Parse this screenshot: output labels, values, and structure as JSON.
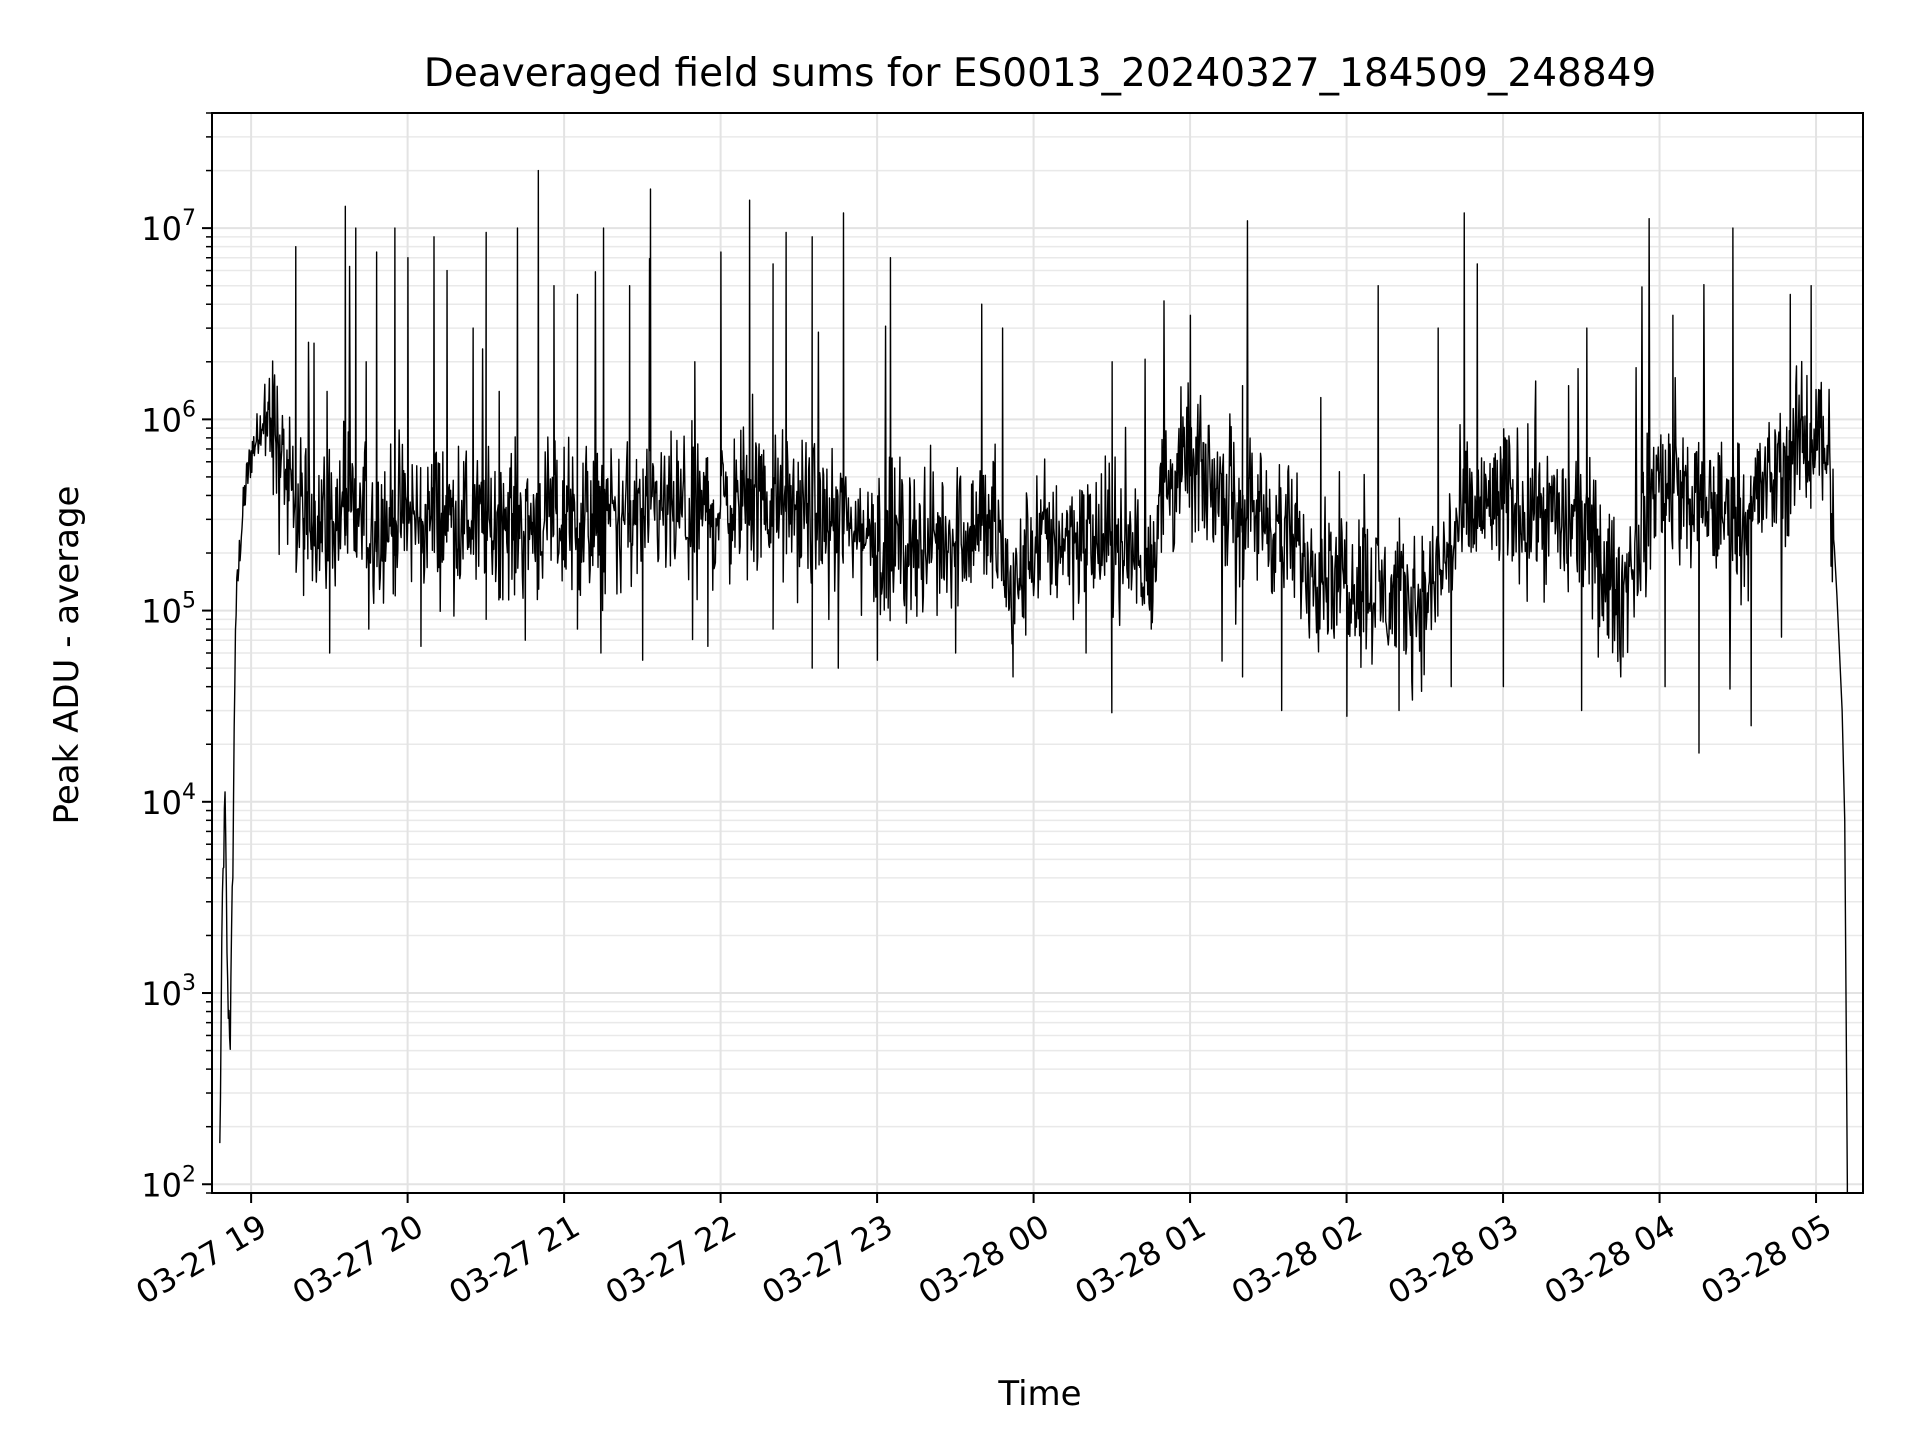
{
  "chart_data": {
    "type": "line",
    "title": "Deaveraged field sums for ES0013_20240327_184509_248849",
    "xlabel": "Time",
    "ylabel": "Peak ADU - average",
    "x_axis": {
      "type": "time",
      "range": [
        "2024-03-27 18:45",
        "2024-03-28 05:18"
      ],
      "tick_values": [
        "2024-03-27 19:00",
        "2024-03-27 20:00",
        "2024-03-27 21:00",
        "2024-03-27 22:00",
        "2024-03-27 23:00",
        "2024-03-28 00:00",
        "2024-03-28 01:00",
        "2024-03-28 02:00",
        "2024-03-28 03:00",
        "2024-03-28 04:00",
        "2024-03-28 05:00"
      ],
      "tick_labels": [
        "03-27 19",
        "03-27 20",
        "03-27 21",
        "03-27 22",
        "03-27 23",
        "03-28 00",
        "03-28 01",
        "03-28 02",
        "03-28 03",
        "03-28 04",
        "03-28 05"
      ]
    },
    "y_axis": {
      "scale": "log",
      "range": [
        90,
        40000000
      ],
      "tick_values": [
        100,
        1000,
        10000,
        100000,
        1000000,
        10000000
      ],
      "tick_labels": [
        {
          "base": "10",
          "exp": "2"
        },
        {
          "base": "10",
          "exp": "3"
        },
        {
          "base": "10",
          "exp": "4"
        },
        {
          "base": "10",
          "exp": "5"
        },
        {
          "base": "10",
          "exp": "6"
        },
        {
          "base": "10",
          "exp": "7"
        }
      ]
    },
    "grid": {
      "major": true,
      "minor_y": true
    },
    "line_color": "#000000",
    "series": [
      {
        "style": "thin-line",
        "points": [
          [
            "2024-03-27 18:48",
            150
          ],
          [
            "2024-03-27 18:49",
            3000
          ],
          [
            "2024-03-27 18:50",
            10000
          ],
          [
            "2024-03-27 18:51",
            1000
          ],
          [
            "2024-03-27 18:52",
            600
          ],
          [
            "2024-03-27 18:53",
            5000
          ],
          [
            "2024-03-27 18:54",
            90000
          ],
          [
            "2024-03-27 18:56",
            250000
          ],
          [
            "2024-03-27 18:58",
            450000
          ],
          [
            "2024-03-27 19:00",
            650000
          ],
          [
            "2024-03-27 19:04",
            1000000
          ],
          [
            "2024-03-27 19:08",
            950000
          ],
          [
            "2024-03-27 19:12",
            700000
          ],
          [
            "2024-03-27 19:15",
            350000
          ],
          [
            "2024-03-27 19:20",
            300000
          ],
          [
            "2024-03-27 19:30",
            320000
          ],
          [
            "2024-03-27 19:45",
            280000
          ],
          [
            "2024-03-27 20:00",
            300000
          ],
          [
            "2024-03-27 20:15",
            310000
          ],
          [
            "2024-03-27 20:30",
            300000
          ],
          [
            "2024-03-27 20:45",
            290000
          ],
          [
            "2024-03-27 21:00",
            290000
          ],
          [
            "2024-03-27 21:15",
            300000
          ],
          [
            "2024-03-27 21:30",
            310000
          ],
          [
            "2024-03-27 21:45",
            320000
          ],
          [
            "2024-03-27 22:00",
            350000
          ],
          [
            "2024-03-27 22:15",
            370000
          ],
          [
            "2024-03-27 22:30",
            330000
          ],
          [
            "2024-03-27 22:45",
            280000
          ],
          [
            "2024-03-27 23:00",
            250000
          ],
          [
            "2024-03-27 23:15",
            220000
          ],
          [
            "2024-03-27 23:30",
            250000
          ],
          [
            "2024-03-27 23:45",
            300000
          ],
          [
            "2024-03-27 23:52",
            110000
          ],
          [
            "2024-03-28 00:00",
            230000
          ],
          [
            "2024-03-28 00:15",
            250000
          ],
          [
            "2024-03-28 00:30",
            220000
          ],
          [
            "2024-03-28 00:45",
            180000
          ],
          [
            "2024-03-28 00:50",
            450000
          ],
          [
            "2024-03-28 01:00",
            550000
          ],
          [
            "2024-03-28 01:15",
            400000
          ],
          [
            "2024-03-28 01:30",
            300000
          ],
          [
            "2024-03-28 01:45",
            180000
          ],
          [
            "2024-03-28 02:00",
            160000
          ],
          [
            "2024-03-28 02:15",
            120000
          ],
          [
            "2024-03-28 02:30",
            110000
          ],
          [
            "2024-03-28 02:45",
            300000
          ],
          [
            "2024-03-28 03:00",
            380000
          ],
          [
            "2024-03-28 03:15",
            330000
          ],
          [
            "2024-03-28 03:30",
            280000
          ],
          [
            "2024-03-28 03:45",
            110000
          ],
          [
            "2024-03-28 03:52",
            250000
          ],
          [
            "2024-03-28 04:00",
            500000
          ],
          [
            "2024-03-28 04:15",
            350000
          ],
          [
            "2024-03-28 04:30",
            320000
          ],
          [
            "2024-03-28 04:45",
            500000
          ],
          [
            "2024-03-28 05:00",
            900000
          ],
          [
            "2024-03-28 05:05",
            700000
          ],
          [
            "2024-03-28 05:08",
            120000
          ],
          [
            "2024-03-28 05:10",
            30000
          ],
          [
            "2024-03-28 05:11",
            8000
          ],
          [
            "2024-03-28 05:12",
            100
          ]
        ],
        "peaks": [
          [
            "2024-03-27 19:17",
            8000000
          ],
          [
            "2024-03-27 19:24",
            2500000
          ],
          [
            "2024-03-27 19:29",
            1400000
          ],
          [
            "2024-03-27 19:36",
            13000000
          ],
          [
            "2024-03-27 19:40",
            10000000
          ],
          [
            "2024-03-27 19:44",
            2000000
          ],
          [
            "2024-03-27 19:48",
            7500000
          ],
          [
            "2024-03-27 19:55",
            10000000
          ],
          [
            "2024-03-27 20:00",
            7000000
          ],
          [
            "2024-03-27 20:10",
            9000000
          ],
          [
            "2024-03-27 20:15",
            6000000
          ],
          [
            "2024-03-27 20:25",
            3000000
          ],
          [
            "2024-03-27 20:30",
            9500000
          ],
          [
            "2024-03-27 20:35",
            1400000
          ],
          [
            "2024-03-27 20:42",
            10000000
          ],
          [
            "2024-03-27 20:50",
            20000000
          ],
          [
            "2024-03-27 20:56",
            5000000
          ],
          [
            "2024-03-27 21:05",
            4500000
          ],
          [
            "2024-03-27 21:15",
            10000000
          ],
          [
            "2024-03-27 21:25",
            5000000
          ],
          [
            "2024-03-27 21:33",
            16000000
          ],
          [
            "2024-03-27 21:50",
            2000000
          ],
          [
            "2024-03-27 22:00",
            7500000
          ],
          [
            "2024-03-27 22:11",
            14000000
          ],
          [
            "2024-03-27 22:20",
            6500000
          ],
          [
            "2024-03-27 22:25",
            9500000
          ],
          [
            "2024-03-27 22:35",
            9000000
          ],
          [
            "2024-03-27 22:47",
            12000000
          ],
          [
            "2024-03-27 23:05",
            7000000
          ],
          [
            "2024-03-27 23:40",
            4000000
          ],
          [
            "2024-03-27 23:48",
            3000000
          ],
          [
            "2024-03-28 00:30",
            2000000
          ],
          [
            "2024-03-28 01:00",
            3500000
          ],
          [
            "2024-03-28 01:20",
            1500000
          ],
          [
            "2024-03-28 01:50",
            1300000
          ],
          [
            "2024-03-28 02:12",
            5000000
          ],
          [
            "2024-03-28 02:35",
            3000000
          ],
          [
            "2024-03-28 02:45",
            12000000
          ],
          [
            "2024-03-28 02:50",
            6500000
          ],
          [
            "2024-03-28 03:25",
            1500000
          ],
          [
            "2024-03-28 03:32",
            3000000
          ],
          [
            "2024-03-28 04:05",
            3500000
          ],
          [
            "2024-03-28 04:28",
            10000000
          ],
          [
            "2024-03-28 04:50",
            4500000
          ],
          [
            "2024-03-28 04:58",
            5000000
          ]
        ],
        "dips": [
          [
            "2024-03-27 19:20",
            120000
          ],
          [
            "2024-03-27 19:30",
            60000
          ],
          [
            "2024-03-27 19:45",
            80000
          ],
          [
            "2024-03-27 20:05",
            65000
          ],
          [
            "2024-03-27 20:30",
            90000
          ],
          [
            "2024-03-27 20:45",
            70000
          ],
          [
            "2024-03-27 21:05",
            80000
          ],
          [
            "2024-03-27 21:14",
            60000
          ],
          [
            "2024-03-27 21:30",
            55000
          ],
          [
            "2024-03-27 21:55",
            65000
          ],
          [
            "2024-03-27 22:20",
            80000
          ],
          [
            "2024-03-27 22:35",
            50000
          ],
          [
            "2024-03-27 22:45",
            50000
          ],
          [
            "2024-03-27 23:00",
            55000
          ],
          [
            "2024-03-27 23:30",
            60000
          ],
          [
            "2024-03-27 23:52",
            45000
          ],
          [
            "2024-03-28 00:20",
            60000
          ],
          [
            "2024-03-28 00:45",
            80000
          ],
          [
            "2024-03-28 01:20",
            45000
          ],
          [
            "2024-03-28 01:35",
            30000
          ],
          [
            "2024-03-28 02:00",
            28000
          ],
          [
            "2024-03-28 02:20",
            30000
          ],
          [
            "2024-03-28 02:40",
            40000
          ],
          [
            "2024-03-28 03:00",
            40000
          ],
          [
            "2024-03-28 03:30",
            30000
          ],
          [
            "2024-03-28 03:45",
            45000
          ],
          [
            "2024-03-28 04:02",
            40000
          ],
          [
            "2024-03-28 04:15",
            18000
          ],
          [
            "2024-03-28 04:35",
            25000
          ]
        ]
      }
    ]
  }
}
